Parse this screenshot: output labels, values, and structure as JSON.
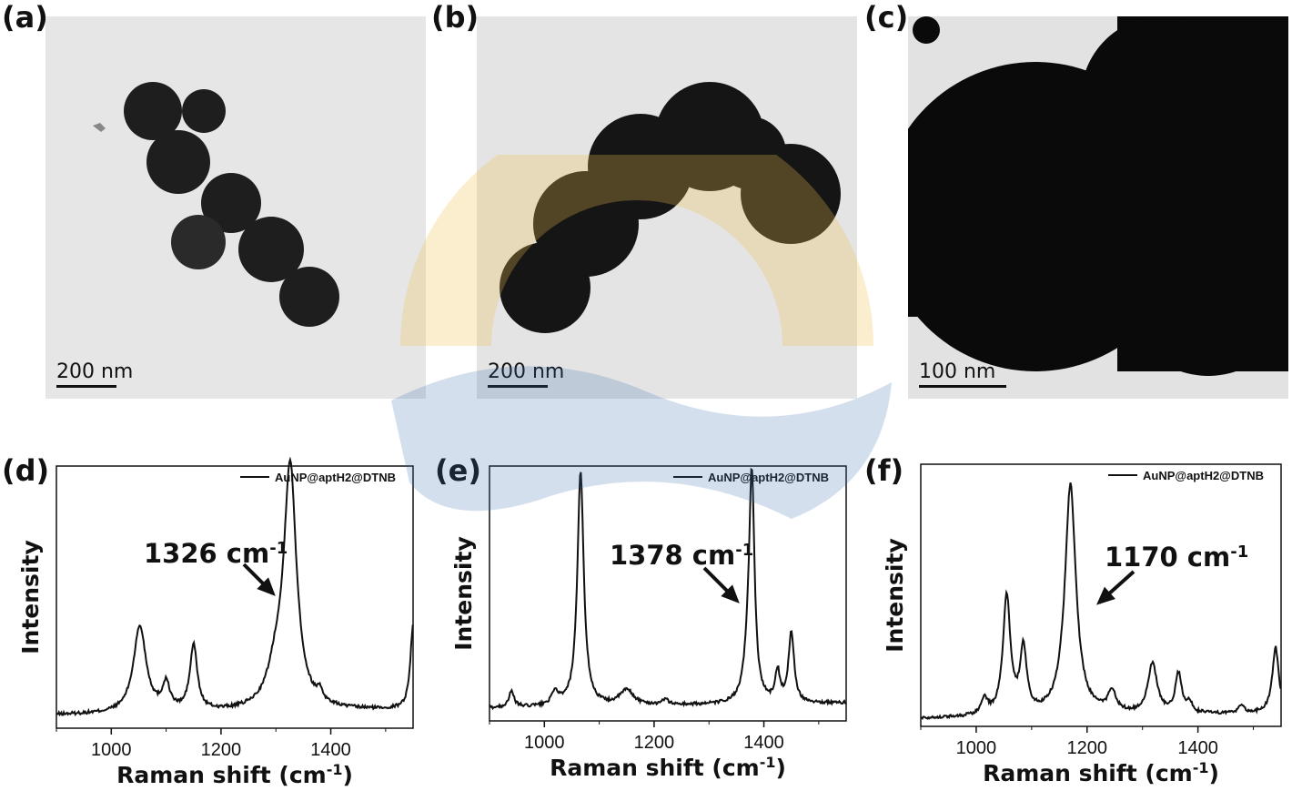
{
  "panels": {
    "a": {
      "label": "(a)",
      "scale": "200 nm"
    },
    "b": {
      "label": "(b)",
      "scale": "200 nm"
    },
    "c": {
      "label": "(c)",
      "scale": "100 nm"
    },
    "d": {
      "label": "(d)"
    },
    "e": {
      "label": "(e)"
    },
    "f": {
      "label": "(f)"
    }
  },
  "chart_data": [
    {
      "type": "line",
      "panel": "d",
      "xlabel": "Raman shift (cm-1)",
      "ylabel": "Intensity",
      "legend": "AuNP@aptH2@DTNB",
      "xlim": [
        900,
        1550
      ],
      "xticks": [
        1000,
        1200,
        1400
      ],
      "annotation": {
        "text": "1326 cm-1",
        "x": 1326
      },
      "baseline": 0.05,
      "peaks": [
        [
          1052,
          0.33,
          14
        ],
        [
          1100,
          0.1,
          8
        ],
        [
          1150,
          0.25,
          8
        ],
        [
          1300,
          0.12,
          18
        ],
        [
          1326,
          0.92,
          14
        ],
        [
          1380,
          0.04,
          6
        ],
        [
          1550,
          0.32,
          6
        ]
      ]
    },
    {
      "type": "line",
      "panel": "e",
      "xlabel": "Raman shift (cm-1)",
      "ylabel": "Intensity",
      "legend": "AuNP@aptH2@DTNB",
      "xlim": [
        900,
        1550
      ],
      "xticks": [
        1000,
        1200,
        1400
      ],
      "annotation": {
        "text": "1378 cm-1",
        "x": 1378
      },
      "baseline": 0.05,
      "peaks": [
        [
          940,
          0.06,
          6
        ],
        [
          1020,
          0.05,
          8
        ],
        [
          1066,
          0.92,
          7
        ],
        [
          1150,
          0.06,
          15
        ],
        [
          1220,
          0.02,
          8
        ],
        [
          1370,
          0.1,
          8
        ],
        [
          1378,
          0.88,
          6
        ],
        [
          1425,
          0.12,
          5
        ],
        [
          1450,
          0.28,
          6
        ]
      ]
    },
    {
      "type": "line",
      "panel": "f",
      "xlabel": "Raman shift (cm-1)",
      "ylabel": "Intensity",
      "legend": "AuNP@aptH2@DTNB",
      "xlim": [
        900,
        1550
      ],
      "xticks": [
        1000,
        1200,
        1400
      ],
      "annotation": {
        "text": "1170 cm-1",
        "x": 1170
      },
      "baseline": 0.03,
      "peaks": [
        [
          1015,
          0.06,
          7
        ],
        [
          1055,
          0.45,
          8
        ],
        [
          1085,
          0.25,
          7
        ],
        [
          1170,
          0.88,
          12
        ],
        [
          1245,
          0.08,
          9
        ],
        [
          1318,
          0.19,
          10
        ],
        [
          1365,
          0.15,
          7
        ],
        [
          1385,
          0.04,
          5
        ],
        [
          1478,
          0.03,
          6
        ],
        [
          1540,
          0.25,
          7
        ]
      ]
    }
  ]
}
